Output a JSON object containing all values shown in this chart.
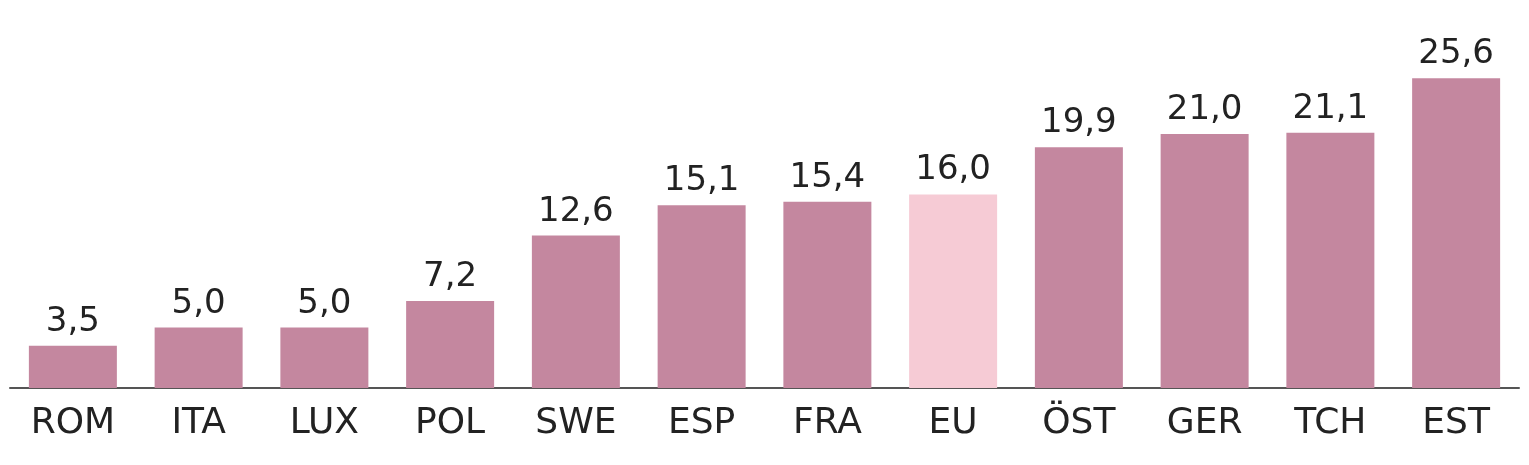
{
  "chart_data": {
    "type": "bar",
    "categories": [
      "ROM",
      "ITA",
      "LUX",
      "POL",
      "SWE",
      "ESP",
      "FRA",
      "EU",
      "ÖST",
      "GER",
      "TCH",
      "EST"
    ],
    "values": [
      3.5,
      5.0,
      5.0,
      7.2,
      12.6,
      15.1,
      15.4,
      16.0,
      19.9,
      21.0,
      21.1,
      25.6
    ],
    "value_labels": [
      "3,5",
      "5,0",
      "5,0",
      "7,2",
      "12,6",
      "15,1",
      "15,4",
      "16,0",
      "19,9",
      "21,0",
      "21,1",
      "25,6"
    ],
    "colors": [
      "#c4879f",
      "#c4879f",
      "#c4879f",
      "#c4879f",
      "#c4879f",
      "#c4879f",
      "#c4879f",
      "#f6cbd5",
      "#c4879f",
      "#c4879f",
      "#c4879f",
      "#c4879f"
    ],
    "tick_labels": "x"
  }
}
